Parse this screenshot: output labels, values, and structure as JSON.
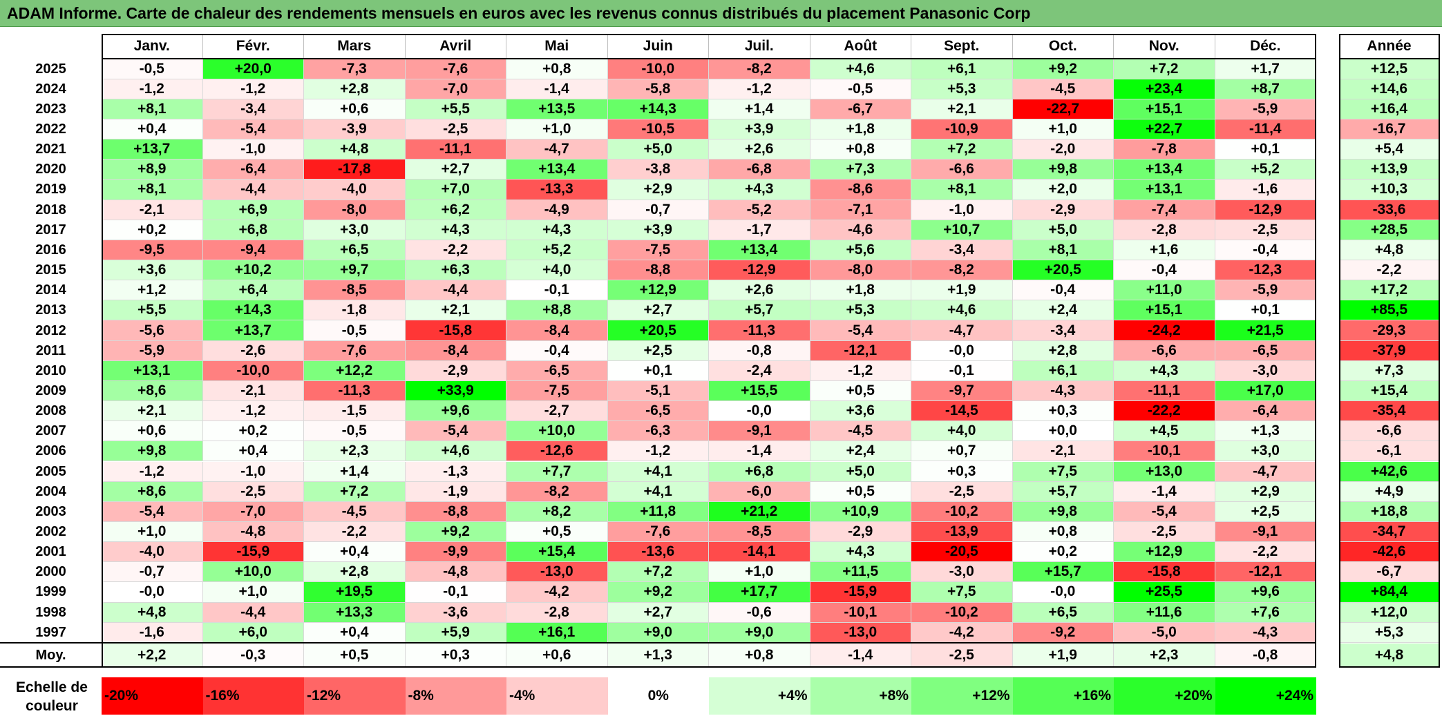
{
  "title": "ADAM Informe. Carte de chaleur des rendements mensuels en euros avec les revenus connus distribués du placement Panasonic Corp",
  "chart_data": {
    "type": "heatmap",
    "title": "ADAM Informe. Carte de chaleur des rendements mensuels en euros avec les revenus connus distribués du placement Panasonic Corp",
    "columns": [
      "Janv.",
      "Févr.",
      "Mars",
      "Avril",
      "Mai",
      "Juin",
      "Juil.",
      "Août",
      "Sept.",
      "Oct.",
      "Nov.",
      "Déc."
    ],
    "year_column_label": "Année",
    "rows": [
      {
        "year": "2025",
        "values": [
          "-0,5",
          "+20,0",
          "-7,3",
          "-7,6",
          "+0,8",
          "-10,0",
          "-8,2",
          "+4,6",
          "+6,1",
          "+9,2",
          "+7,2",
          "+1,7"
        ],
        "annual": "+12,5"
      },
      {
        "year": "2024",
        "values": [
          "-1,2",
          "-1,2",
          "+2,8",
          "-7,0",
          "-1,4",
          "-5,8",
          "-1,2",
          "-0,5",
          "+5,3",
          "-4,5",
          "+23,4",
          "+8,7"
        ],
        "annual": "+14,6"
      },
      {
        "year": "2023",
        "values": [
          "+8,1",
          "-3,4",
          "+0,6",
          "+5,5",
          "+13,5",
          "+14,3",
          "+1,4",
          "-6,7",
          "+2,1",
          "-22,7",
          "+15,1",
          "-5,9"
        ],
        "annual": "+16,4"
      },
      {
        "year": "2022",
        "values": [
          "+0,4",
          "-5,4",
          "-3,9",
          "-2,5",
          "+1,0",
          "-10,5",
          "+3,9",
          "+1,8",
          "-10,9",
          "+1,0",
          "+22,7",
          "-11,4"
        ],
        "annual": "-16,7"
      },
      {
        "year": "2021",
        "values": [
          "+13,7",
          "-1,0",
          "+4,8",
          "-11,1",
          "-4,7",
          "+5,0",
          "+2,6",
          "+0,8",
          "+7,2",
          "-2,0",
          "-7,8",
          "+0,1"
        ],
        "annual": "+5,4"
      },
      {
        "year": "2020",
        "values": [
          "+8,9",
          "-6,4",
          "-17,8",
          "+2,7",
          "+13,4",
          "-3,8",
          "-6,8",
          "+7,3",
          "-6,6",
          "+9,8",
          "+13,4",
          "+5,2"
        ],
        "annual": "+13,9"
      },
      {
        "year": "2019",
        "values": [
          "+8,1",
          "-4,4",
          "-4,0",
          "+7,0",
          "-13,3",
          "+2,9",
          "+4,3",
          "-8,6",
          "+8,1",
          "+2,0",
          "+13,1",
          "-1,6"
        ],
        "annual": "+10,3"
      },
      {
        "year": "2018",
        "values": [
          "-2,1",
          "+6,9",
          "-8,0",
          "+6,2",
          "-4,9",
          "-0,7",
          "-5,2",
          "-7,1",
          "-1,0",
          "-2,9",
          "-7,4",
          "-12,9"
        ],
        "annual": "-33,6"
      },
      {
        "year": "2017",
        "values": [
          "+0,2",
          "+6,8",
          "+3,0",
          "+4,3",
          "+4,3",
          "+3,9",
          "-1,7",
          "-4,6",
          "+10,7",
          "+5,0",
          "-2,8",
          "-2,5"
        ],
        "annual": "+28,5"
      },
      {
        "year": "2016",
        "values": [
          "-9,5",
          "-9,4",
          "+6,5",
          "-2,2",
          "+5,2",
          "-7,5",
          "+13,4",
          "+5,6",
          "-3,4",
          "+8,1",
          "+1,6",
          "-0,4"
        ],
        "annual": "+4,8"
      },
      {
        "year": "2015",
        "values": [
          "+3,6",
          "+10,2",
          "+9,7",
          "+6,3",
          "+4,0",
          "-8,8",
          "-12,9",
          "-8,0",
          "-8,2",
          "+20,5",
          "-0,4",
          "-12,3"
        ],
        "annual": "-2,2"
      },
      {
        "year": "2014",
        "values": [
          "+1,2",
          "+6,4",
          "-8,5",
          "-4,4",
          "-0,1",
          "+12,9",
          "+2,6",
          "+1,8",
          "+1,9",
          "-0,4",
          "+11,0",
          "-5,9"
        ],
        "annual": "+17,2"
      },
      {
        "year": "2013",
        "values": [
          "+5,5",
          "+14,3",
          "-1,8",
          "+2,1",
          "+8,8",
          "+2,7",
          "+5,7",
          "+5,3",
          "+4,6",
          "+2,4",
          "+15,1",
          "+0,1"
        ],
        "annual": "+85,5"
      },
      {
        "year": "2012",
        "values": [
          "-5,6",
          "+13,7",
          "-0,5",
          "-15,8",
          "-8,4",
          "+20,5",
          "-11,3",
          "-5,4",
          "-4,7",
          "-3,4",
          "-24,2",
          "+21,5"
        ],
        "annual": "-29,3"
      },
      {
        "year": "2011",
        "values": [
          "-5,9",
          "-2,6",
          "-7,6",
          "-8,4",
          "-0,4",
          "+2,5",
          "-0,8",
          "-12,1",
          "-0,0",
          "+2,8",
          "-6,6",
          "-6,5"
        ],
        "annual": "-37,9"
      },
      {
        "year": "2010",
        "values": [
          "+13,1",
          "-10,0",
          "+12,2",
          "-2,9",
          "-6,5",
          "+0,1",
          "-2,4",
          "-1,2",
          "-0,1",
          "+6,1",
          "+4,3",
          "-3,0"
        ],
        "annual": "+7,3"
      },
      {
        "year": "2009",
        "values": [
          "+8,6",
          "-2,1",
          "-11,3",
          "+33,9",
          "-7,5",
          "-5,1",
          "+15,5",
          "+0,5",
          "-9,7",
          "-4,3",
          "-11,1",
          "+17,0"
        ],
        "annual": "+15,4"
      },
      {
        "year": "2008",
        "values": [
          "+2,1",
          "-1,2",
          "-1,5",
          "+9,6",
          "-2,7",
          "-6,5",
          "-0,0",
          "+3,6",
          "-14,5",
          "+0,3",
          "-22,2",
          "-6,4"
        ],
        "annual": "-35,4"
      },
      {
        "year": "2007",
        "values": [
          "+0,6",
          "+0,2",
          "-0,5",
          "-5,4",
          "+10,0",
          "-6,3",
          "-9,1",
          "-4,5",
          "+4,0",
          "+0,0",
          "+4,5",
          "+1,3"
        ],
        "annual": "-6,6"
      },
      {
        "year": "2006",
        "values": [
          "+9,8",
          "+0,4",
          "+2,3",
          "+4,6",
          "-12,6",
          "-1,2",
          "-1,4",
          "+2,4",
          "+0,7",
          "-2,1",
          "-10,1",
          "+3,0"
        ],
        "annual": "-6,1"
      },
      {
        "year": "2005",
        "values": [
          "-1,2",
          "-1,0",
          "+1,4",
          "-1,3",
          "+7,7",
          "+4,1",
          "+6,8",
          "+5,0",
          "+0,3",
          "+7,5",
          "+13,0",
          "-4,7"
        ],
        "annual": "+42,6"
      },
      {
        "year": "2004",
        "values": [
          "+8,6",
          "-2,5",
          "+7,2",
          "-1,9",
          "-8,2",
          "+4,1",
          "-6,0",
          "+0,5",
          "-2,5",
          "+5,7",
          "-1,4",
          "+2,9"
        ],
        "annual": "+4,9"
      },
      {
        "year": "2003",
        "values": [
          "-5,4",
          "-7,0",
          "-4,5",
          "-8,8",
          "+8,2",
          "+11,8",
          "+21,2",
          "+10,9",
          "-10,2",
          "+9,8",
          "-5,4",
          "+2,5"
        ],
        "annual": "+18,8"
      },
      {
        "year": "2002",
        "values": [
          "+1,0",
          "-4,8",
          "-2,2",
          "+9,2",
          "+0,5",
          "-7,6",
          "-8,5",
          "-2,9",
          "-13,9",
          "+0,8",
          "-2,5",
          "-9,1"
        ],
        "annual": "-34,7"
      },
      {
        "year": "2001",
        "values": [
          "-4,0",
          "-15,9",
          "+0,4",
          "-9,9",
          "+15,4",
          "-13,6",
          "-14,1",
          "+4,3",
          "-20,5",
          "+0,2",
          "+12,9",
          "-2,2"
        ],
        "annual": "-42,6"
      },
      {
        "year": "2000",
        "values": [
          "-0,7",
          "+10,0",
          "+2,8",
          "-4,8",
          "-13,0",
          "+7,2",
          "+1,0",
          "+11,5",
          "-3,0",
          "+15,7",
          "-15,8",
          "-12,1"
        ],
        "annual": "-6,7"
      },
      {
        "year": "1999",
        "values": [
          "-0,0",
          "+1,0",
          "+19,5",
          "-0,1",
          "-4,2",
          "+9,2",
          "+17,7",
          "-15,9",
          "+7,5",
          "-0,0",
          "+25,5",
          "+9,6"
        ],
        "annual": "+84,4"
      },
      {
        "year": "1998",
        "values": [
          "+4,8",
          "-4,4",
          "+13,3",
          "-3,6",
          "-2,8",
          "+2,7",
          "-0,6",
          "-10,1",
          "-10,2",
          "+6,5",
          "+11,6",
          "+7,6"
        ],
        "annual": "+12,0"
      },
      {
        "year": "1997",
        "values": [
          "-1,6",
          "+6,0",
          "+0,4",
          "+5,9",
          "+16,1",
          "+9,0",
          "+9,0",
          "-13,0",
          "-4,2",
          "-9,2",
          "-5,0",
          "-4,3"
        ],
        "annual": "+5,3"
      }
    ],
    "average": {
      "label": "Moy.",
      "values": [
        "+2,2",
        "-0,3",
        "+0,5",
        "+0,3",
        "+0,6",
        "+1,3",
        "+0,8",
        "-1,4",
        "-2,5",
        "+1,9",
        "+2,3",
        "-0,8"
      ],
      "annual": "+4,8"
    },
    "color_scale": {
      "label": "Echelle de couleur",
      "steps": [
        {
          "label": "-20%",
          "value": -20
        },
        {
          "label": "-16%",
          "value": -16
        },
        {
          "label": "-12%",
          "value": -12
        },
        {
          "label": "-8%",
          "value": -8
        },
        {
          "label": "-4%",
          "value": -4
        },
        {
          "label": "0%",
          "value": 0
        },
        {
          "label": "+4%",
          "value": 4
        },
        {
          "label": "+8%",
          "value": 8
        },
        {
          "label": "+12%",
          "value": 12
        },
        {
          "label": "+16%",
          "value": 16
        },
        {
          "label": "+20%",
          "value": 20
        },
        {
          "label": "+24%",
          "value": 24
        }
      ],
      "negative_color": "#ff0000",
      "neutral_color": "#ffffff",
      "positive_color": "#00ff00"
    }
  }
}
